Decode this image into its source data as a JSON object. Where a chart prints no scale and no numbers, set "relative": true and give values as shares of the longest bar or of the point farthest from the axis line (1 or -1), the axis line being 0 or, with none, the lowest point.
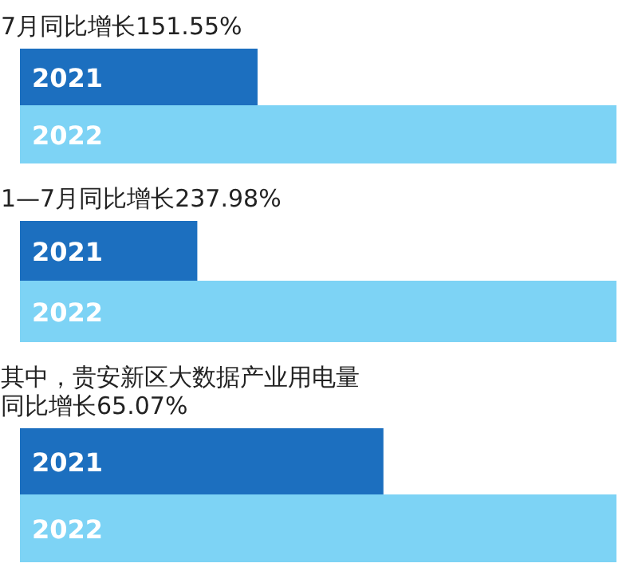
{
  "chart_data": [
    {
      "type": "bar",
      "title": "7月同比增长151.55%",
      "orientation": "horizontal",
      "relative": true,
      "categories": [
        "2021",
        "2022"
      ],
      "values": [
        0.397,
        1
      ],
      "colors": [
        "#1c6fbf",
        "#7dd3f5"
      ]
    },
    {
      "type": "bar",
      "title": "1—7月同比增长237.98%",
      "orientation": "horizontal",
      "relative": true,
      "categories": [
        "2021",
        "2022"
      ],
      "values": [
        0.296,
        1
      ],
      "colors": [
        "#1c6fbf",
        "#7dd3f5"
      ]
    },
    {
      "type": "bar",
      "title": "其中，贵安新区大数据产业用电量同比增长65.07%",
      "orientation": "horizontal",
      "relative": true,
      "categories": [
        "2021",
        "2022"
      ],
      "values": [
        0.608,
        1
      ],
      "colors": [
        "#1c6fbf",
        "#7dd3f5"
      ]
    }
  ]
}
